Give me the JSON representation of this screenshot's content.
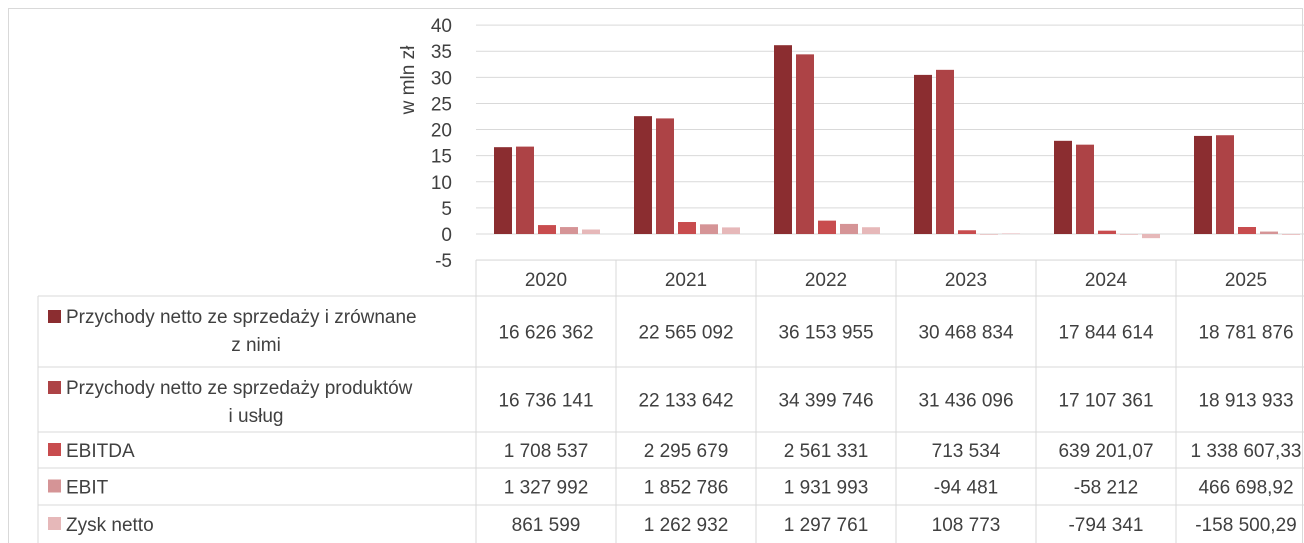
{
  "chart_data": {
    "type": "bar",
    "ylabel": "w mln zł",
    "ylim": [
      -5,
      40
    ],
    "yticks": [
      "-5",
      "0",
      "5",
      "10",
      "15",
      "20",
      "25",
      "30",
      "35",
      "40"
    ],
    "grid": "horizontal",
    "legend": "data-table",
    "categories": [
      "2020",
      "2021",
      "2022",
      "2023",
      "2024",
      "2025"
    ],
    "series": [
      {
        "name": "Przychody netto ze sprzedaży i zrównane z nimi",
        "label_lines": [
          "Przychody netto ze sprzedaży i zrównane",
          "z nimi"
        ],
        "color": "#8b2d30",
        "values": [
          16.626362,
          22.565092,
          36.153955,
          30.468834,
          17.844614,
          18.781876
        ],
        "table": [
          "16 626 362",
          "22 565 092",
          "36 153 955",
          "30 468 834",
          "17 844 614",
          "18 781 876"
        ]
      },
      {
        "name": "Przychody netto ze sprzedaży produktów i usług",
        "label_lines": [
          "Przychody netto ze sprzedaży produktów",
          "i usług"
        ],
        "color": "#ad4346",
        "values": [
          16.736141,
          22.133642,
          34.399746,
          31.436096,
          17.107361,
          18.913933
        ],
        "table": [
          "16 736 141",
          "22 133 642",
          "34 399 746",
          "31 436 096",
          "17 107 361",
          "18 913 933"
        ]
      },
      {
        "name": "EBITDA",
        "label_lines": [
          "EBITDA"
        ],
        "color": "#c84c4e",
        "values": [
          1.708537,
          2.295679,
          2.561331,
          0.713534,
          0.63920107,
          1.33860733
        ],
        "table": [
          "1 708 537",
          "2 295 679",
          "2 561 331",
          "713 534",
          "639 201,07",
          "1 338 607,33"
        ]
      },
      {
        "name": "EBIT",
        "label_lines": [
          "EBIT"
        ],
        "color": "#d59496",
        "values": [
          1.327992,
          1.852786,
          1.931993,
          -0.094481,
          -0.058212,
          0.46669892
        ],
        "table": [
          "1 327 992",
          "1 852 786",
          "1 931 993",
          "-94 481",
          "-58 212",
          "466 698,92"
        ]
      },
      {
        "name": "Zysk netto",
        "label_lines": [
          "Zysk netto"
        ],
        "color": "#e6b8b9",
        "values": [
          0.861599,
          1.262932,
          1.297761,
          0.108773,
          -0.794341,
          -0.15850029
        ],
        "table": [
          "861 599",
          "1 262 932",
          "1 297 761",
          "108 773",
          "-794 341",
          "-158 500,29"
        ]
      }
    ]
  }
}
